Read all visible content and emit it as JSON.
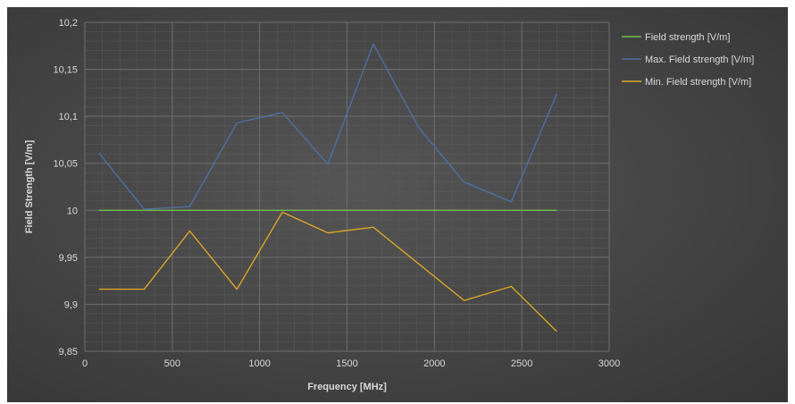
{
  "chart_data": {
    "type": "line",
    "title": "",
    "xlabel": "Frequency [MHz]",
    "ylabel": "Field Strength [V/m]",
    "xlim": [
      0,
      3000
    ],
    "ylim": [
      9.85,
      10.2
    ],
    "x_ticks": [
      0,
      500,
      1000,
      1500,
      2000,
      2500,
      3000
    ],
    "x_tick_labels": [
      "0",
      "500",
      "1000",
      "1500",
      "2000",
      "2500",
      "3000"
    ],
    "y_ticks": [
      9.85,
      9.9,
      9.95,
      10,
      10.05,
      10.1,
      10.15,
      10.2
    ],
    "y_tick_labels": [
      "9,85",
      "9,9",
      "9,95",
      "10",
      "10,05",
      "10,1",
      "10,15",
      "10,2"
    ],
    "grid": true,
    "legend_position": "right",
    "background": "#474747",
    "series": [
      {
        "name": "Field strength [V/m]",
        "color": "#6fbf4a",
        "x": [
          80,
          2700
        ],
        "y": [
          10.0,
          10.0
        ]
      },
      {
        "name": "Max. Field strength [V/m]",
        "color": "#4e6fa3",
        "x": [
          80,
          340,
          600,
          870,
          1130,
          1390,
          1650,
          1910,
          2170,
          2440,
          2700
        ],
        "y": [
          10.061,
          10.001,
          10.004,
          10.093,
          10.104,
          10.049,
          10.177,
          10.088,
          10.03,
          10.009,
          10.124
        ]
      },
      {
        "name": "Min. Field strength [V/m]",
        "color": "#d9a42a",
        "x": [
          80,
          340,
          600,
          870,
          1130,
          1390,
          1650,
          1910,
          2170,
          2440,
          2700
        ],
        "y": [
          9.916,
          9.916,
          9.978,
          9.916,
          9.998,
          9.976,
          9.982,
          9.943,
          9.904,
          9.919,
          9.871
        ]
      }
    ]
  }
}
